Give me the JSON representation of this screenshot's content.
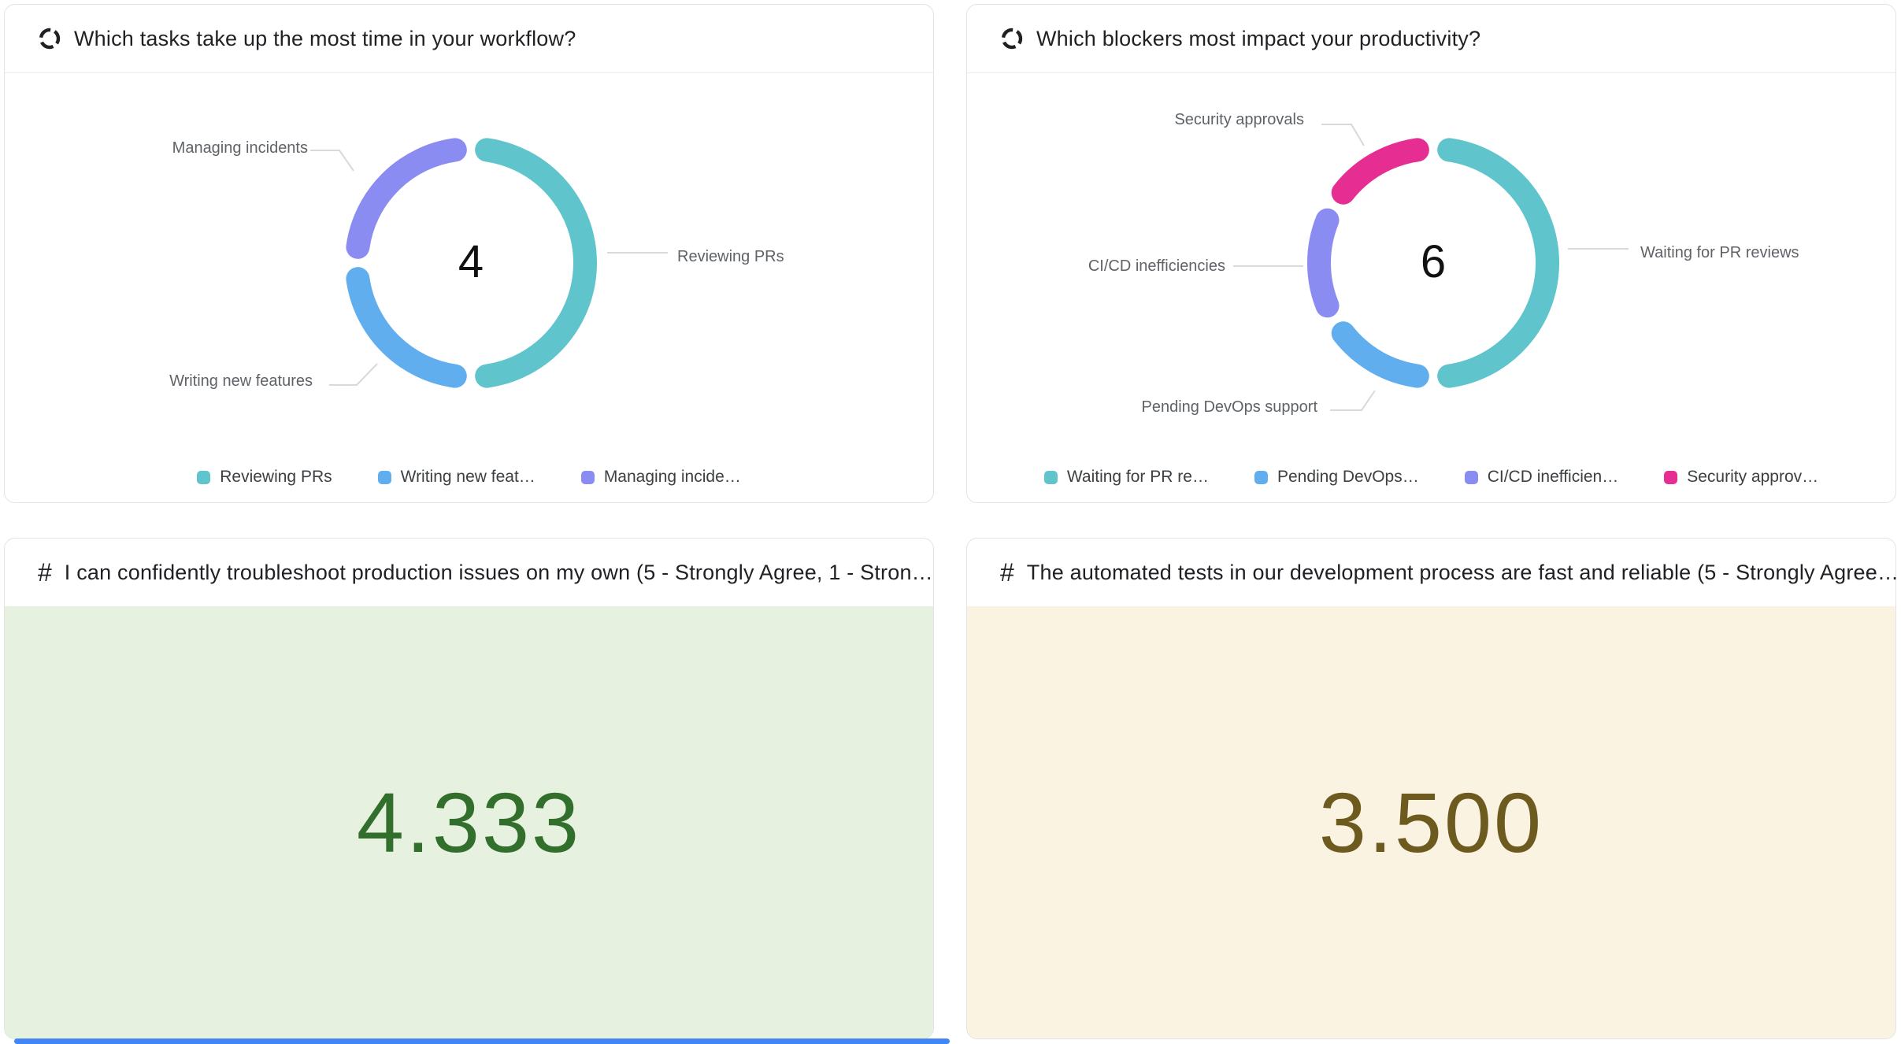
{
  "page": {
    "background": "#ffffff"
  },
  "icons": {
    "donut_question_icon": "segmented-ring",
    "number_question_icon": "#"
  },
  "scrollbar": {
    "color": "#4285f4"
  },
  "chart_data": [
    {
      "type": "pie",
      "subtype": "donut",
      "title": "Which tasks take up the most time in your workflow?",
      "center_value": "4",
      "legend_position": "bottom",
      "slices": [
        {
          "label": "Reviewing PRs",
          "legend_label": "Reviewing PRs",
          "value": 2,
          "color": "#5fc4cb"
        },
        {
          "label": "Writing new features",
          "legend_label": "Writing new feat…",
          "value": 1,
          "color": "#61aeee"
        },
        {
          "label": "Managing incidents",
          "legend_label": "Managing incide…",
          "value": 1,
          "color": "#8b8cf1"
        }
      ]
    },
    {
      "type": "pie",
      "subtype": "donut",
      "title": "Which blockers most impact your productivity?",
      "center_value": "6",
      "legend_position": "bottom",
      "slices": [
        {
          "label": "Waiting for PR reviews",
          "legend_label": "Waiting for PR re…",
          "value": 3,
          "color": "#5fc4cb"
        },
        {
          "label": "Pending DevOps support",
          "legend_label": "Pending DevOps…",
          "value": 1,
          "color": "#61aeee"
        },
        {
          "label": "CI/CD inefficiencies",
          "legend_label": "CI/CD inefficien…",
          "value": 1,
          "color": "#8b8cf1"
        },
        {
          "label": "Security approvals",
          "legend_label": "Security approv…",
          "value": 1,
          "color": "#e62e92"
        }
      ]
    },
    {
      "type": "number",
      "title": "I can confidently troubleshoot production issues on my own (5 - Strongly Agree, 1 - Stron…",
      "icon": "#",
      "value": 4.333,
      "display_value": "4.333",
      "background": "#e6f2df",
      "text_color": "#336f2c"
    },
    {
      "type": "number",
      "title": "The automated tests in our development process are fast and reliable (5 - Strongly Agree…",
      "icon": "#",
      "value": 3.5,
      "display_value": "3.500",
      "background": "#faf3e2",
      "text_color": "#6d5a1f"
    }
  ]
}
